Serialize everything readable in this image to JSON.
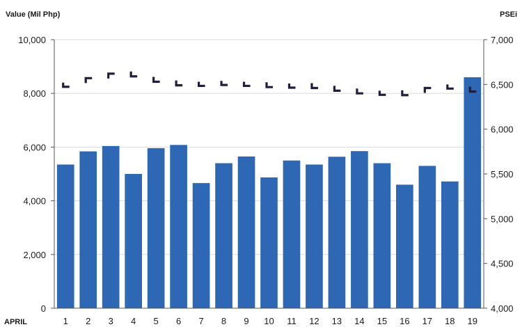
{
  "chart_data": {
    "type": "bar",
    "categories": [
      "1",
      "2",
      "3",
      "4",
      "5",
      "6",
      "7",
      "8",
      "9",
      "10",
      "11",
      "12",
      "13",
      "14",
      "15",
      "16",
      "17",
      "18",
      "19"
    ],
    "series": [
      {
        "axis": "left",
        "type": "bar",
        "color": "#2e68b5",
        "values": [
          5350,
          5840,
          6040,
          5000,
          5960,
          6080,
          4660,
          5400,
          5650,
          4870,
          5500,
          5350,
          5640,
          5850,
          5400,
          4600,
          5300,
          4720,
          8600
        ]
      },
      {
        "axis": "right",
        "type": "marker-line",
        "color": "#1f1f3d",
        "values": [
          6490,
          6570,
          6620,
          6590,
          6530,
          6490,
          6500,
          6510,
          6500,
          6470,
          6480,
          6460,
          6430,
          6400,
          6400,
          6380,
          6460,
          6470,
          6420
        ]
      }
    ],
    "left_axis": {
      "label": "Value (Mil Php)",
      "ticks": [
        "0",
        "2,000",
        "4,000",
        "6,000",
        "8,000",
        "10,000"
      ],
      "ylim": [
        0,
        10000
      ]
    },
    "right_axis": {
      "label": "PSEi",
      "ticks": [
        "4,000",
        "4,500",
        "5,000",
        "5,500",
        "6,000",
        "6,500",
        "7,000"
      ],
      "ylim": [
        4000,
        7000
      ]
    },
    "xlabel": "APRIL",
    "grid": true
  }
}
